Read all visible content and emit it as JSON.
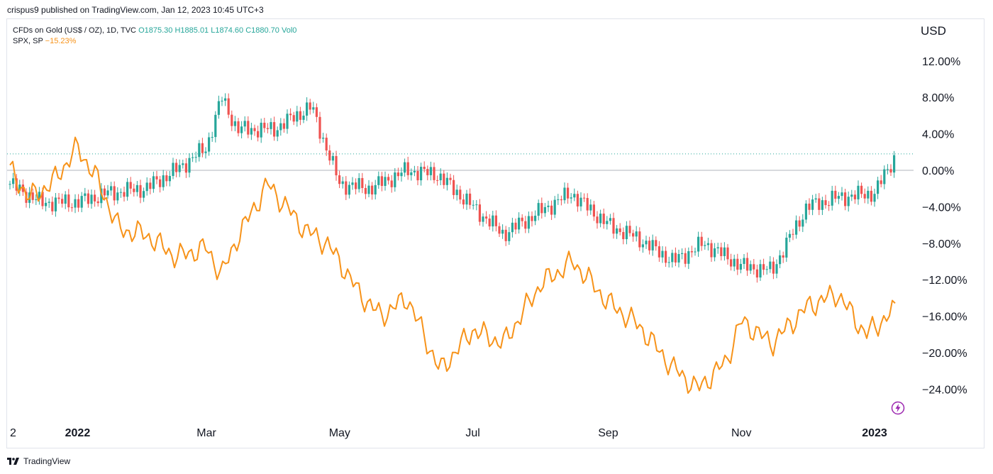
{
  "header": {
    "publisher": "crispus9 published on TradingView.com, Jan 12, 2023 10:45 UTC+3"
  },
  "legend": {
    "main_label": "CFDs on Gold (US$ / OZ), 1D, TVC",
    "open": "O1875.30",
    "high": "H1885.01",
    "low": "L1874.60",
    "close": "C1880.70",
    "vol": "Vol0",
    "compare_label": "SPX, SP",
    "compare_value": "−15.23%"
  },
  "currency": "USD",
  "footer": {
    "brand": "TradingView",
    "logo_text": "17"
  },
  "colors": {
    "up": "#26a69a",
    "down": "#ef5350",
    "spx": "#f7931a",
    "zero_line": "#b2b5be",
    "last_price": "#26a69a"
  },
  "icons": {
    "bolt": "lightning-icon"
  },
  "chart_data": {
    "type": "line",
    "title": "",
    "xlabel": "",
    "ylabel": "",
    "y_unit": "%",
    "ylim": [
      -27,
      14
    ],
    "y_ticks": [
      "12.00%",
      "8.00%",
      "4.00%",
      "0.00%",
      "−4.00%",
      "−8.00%",
      "−12.00%",
      "−16.00%",
      "−20.00%",
      "−24.00%"
    ],
    "y_tick_values": [
      12,
      8,
      4,
      0,
      -4,
      -8,
      -12,
      -16,
      -20,
      -24
    ],
    "x_ticks": [
      {
        "label": "2",
        "date": "2021-12-01",
        "bold": false
      },
      {
        "label": "2022",
        "date": "2022-01-01",
        "bold": true
      },
      {
        "label": "Mar",
        "date": "2022-03-01",
        "bold": false
      },
      {
        "label": "May",
        "date": "2022-05-01",
        "bold": false
      },
      {
        "label": "Jul",
        "date": "2022-07-01",
        "bold": false
      },
      {
        "label": "Sep",
        "date": "2022-09-01",
        "bold": false
      },
      {
        "label": "Nov",
        "date": "2022-11-01",
        "bold": false
      },
      {
        "label": "2023",
        "date": "2023-01-01",
        "bold": true
      }
    ],
    "series": [
      {
        "name": "CFDs on Gold (US$ / OZ)",
        "style": "candlestick",
        "x": [
          "2021-12-01",
          "2021-12-15",
          "2022-01-01",
          "2022-01-15",
          "2022-02-01",
          "2022-02-15",
          "2022-03-01",
          "2022-03-08",
          "2022-03-15",
          "2022-04-01",
          "2022-04-18",
          "2022-05-01",
          "2022-05-15",
          "2022-06-01",
          "2022-06-15",
          "2022-07-01",
          "2022-07-15",
          "2022-08-01",
          "2022-08-15",
          "2022-09-01",
          "2022-09-15",
          "2022-10-01",
          "2022-10-15",
          "2022-11-01",
          "2022-11-15",
          "2022-12-01",
          "2022-12-15",
          "2023-01-01",
          "2023-01-11"
        ],
        "values": [
          -1.5,
          -3.5,
          -3.5,
          -2.5,
          -2.0,
          0.0,
          2.5,
          8.0,
          4.5,
          4.5,
          7.0,
          -1.5,
          -2.0,
          0.0,
          -0.5,
          -4.0,
          -7.0,
          -4.5,
          -2.5,
          -6.0,
          -7.5,
          -10.0,
          -8.0,
          -10.5,
          -11.0,
          -4.0,
          -3.0,
          -2.5,
          1.8
        ]
      },
      {
        "name": "SPX",
        "style": "line",
        "x": [
          "2021-12-01",
          "2021-12-10",
          "2021-12-20",
          "2022-01-01",
          "2022-01-10",
          "2022-01-20",
          "2022-02-01",
          "2022-02-15",
          "2022-03-01",
          "2022-03-08",
          "2022-03-15",
          "2022-03-29",
          "2022-04-15",
          "2022-04-25",
          "2022-05-01",
          "2022-05-10",
          "2022-05-20",
          "2022-06-01",
          "2022-06-16",
          "2022-07-01",
          "2022-07-15",
          "2022-08-01",
          "2022-08-16",
          "2022-09-01",
          "2022-09-15",
          "2022-09-30",
          "2022-10-12",
          "2022-10-25",
          "2022-11-01",
          "2022-11-15",
          "2022-12-01",
          "2022-12-15",
          "2022-12-28",
          "2023-01-11"
        ],
        "values": [
          0.0,
          -3.0,
          -1.5,
          2.5,
          -1.0,
          -6.5,
          -7.0,
          -9.5,
          -8.5,
          -11.5,
          -7.5,
          -1.5,
          -6.5,
          -8.0,
          -10.0,
          -13.5,
          -16.0,
          -14.0,
          -22.0,
          -17.5,
          -19.0,
          -12.5,
          -10.0,
          -14.5,
          -17.0,
          -21.5,
          -24.0,
          -21.0,
          -16.5,
          -19.0,
          -15.0,
          -13.5,
          -18.0,
          -15.2
        ]
      }
    ],
    "last_value": 1.8,
    "grid": false,
    "legend_position": "top-left"
  }
}
